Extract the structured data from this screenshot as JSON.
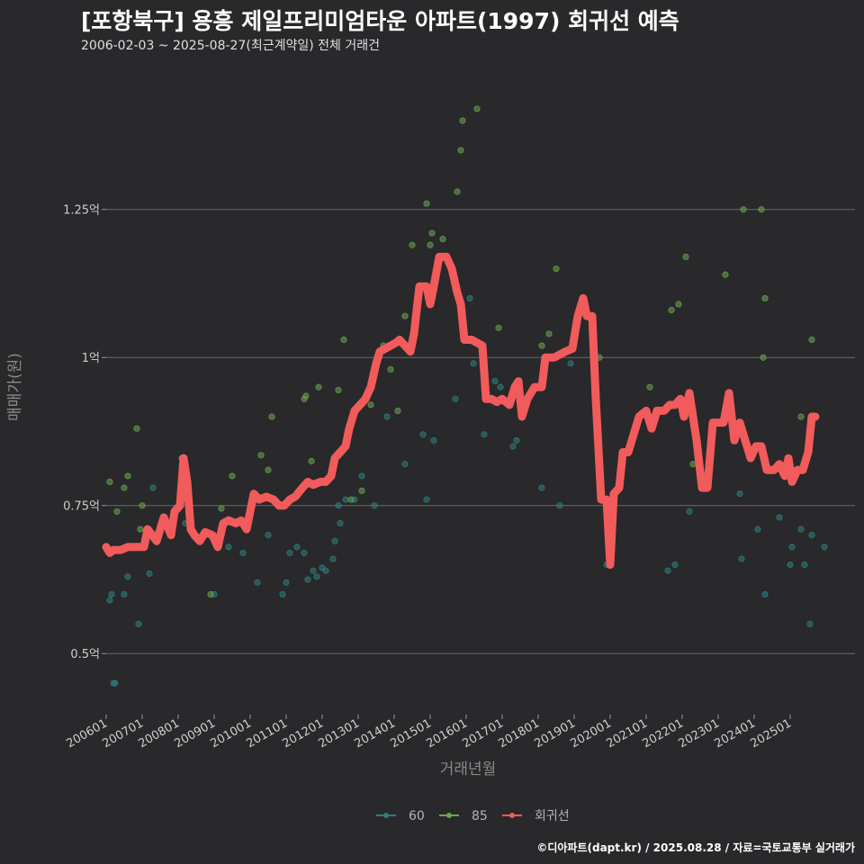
{
  "header": {
    "title": "[포항북구] 용흥 제일프리미엄타운 아파트(1997) 회귀선 예측",
    "subtitle": "2006-02-03 ~ 2025-08-27(최근계약일) 전체 거래건"
  },
  "footer": {
    "credit": "©디아파트(dapt.kr) / 2025.08.28 / 자료=국토교통부 실거래가"
  },
  "colors": {
    "background": "#29282b",
    "grid": "#6a6a6a",
    "series_60": "#2f7f80",
    "series_85": "#6aa650",
    "regression": "#f15b5b"
  },
  "chart_data": {
    "type": "scatter",
    "title": "[포항북구] 용흥 제일프리미엄타운 아파트(1997) 회귀선 예측",
    "subtitle": "2006-02-03 ~ 2025-08-27(최근계약일) 전체 거래건",
    "xlabel": "거래년월",
    "ylabel": "매매가(원)",
    "xlim": [
      2006.0,
      2025.8
    ],
    "ylim": [
      0.4,
      1.47
    ],
    "yticks": [
      {
        "value": 0.5,
        "label": "0.5억"
      },
      {
        "value": 0.75,
        "label": "0.75억"
      },
      {
        "value": 1.0,
        "label": "1억"
      },
      {
        "value": 1.25,
        "label": "1.25억"
      }
    ],
    "xticks": [
      {
        "value": 2006.0,
        "label": "200601"
      },
      {
        "value": 2007.0,
        "label": "200701"
      },
      {
        "value": 2008.0,
        "label": "200801"
      },
      {
        "value": 2009.0,
        "label": "200901"
      },
      {
        "value": 2010.0,
        "label": "201001"
      },
      {
        "value": 2011.0,
        "label": "201101"
      },
      {
        "value": 2012.0,
        "label": "201201"
      },
      {
        "value": 2013.0,
        "label": "201301"
      },
      {
        "value": 2014.0,
        "label": "201401"
      },
      {
        "value": 2015.0,
        "label": "201501"
      },
      {
        "value": 2016.0,
        "label": "201601"
      },
      {
        "value": 2017.0,
        "label": "201701"
      },
      {
        "value": 2018.0,
        "label": "201801"
      },
      {
        "value": 2019.0,
        "label": "201901"
      },
      {
        "value": 2020.0,
        "label": "202001"
      },
      {
        "value": 2021.0,
        "label": "202101"
      },
      {
        "value": 2022.0,
        "label": "202201"
      },
      {
        "value": 2023.0,
        "label": "202301"
      },
      {
        "value": 2024.0,
        "label": "202401"
      },
      {
        "value": 2025.0,
        "label": "202501"
      }
    ],
    "legend": [
      {
        "name": "60",
        "color": "#2f7f80"
      },
      {
        "name": "85",
        "color": "#6aa650"
      },
      {
        "name": "회귀선",
        "color": "#f15b5b"
      }
    ],
    "series": [
      {
        "name": "60",
        "points": [
          [
            2006.1,
            0.59
          ],
          [
            2006.15,
            0.6
          ],
          [
            2006.2,
            0.45
          ],
          [
            2006.25,
            0.45
          ],
          [
            2006.5,
            0.6
          ],
          [
            2006.6,
            0.63
          ],
          [
            2006.9,
            0.55
          ],
          [
            2007.2,
            0.635
          ],
          [
            2007.3,
            0.78
          ],
          [
            2008.1,
            0.77
          ],
          [
            2008.2,
            0.72
          ],
          [
            2009.0,
            0.6
          ],
          [
            2009.4,
            0.68
          ],
          [
            2009.8,
            0.67
          ],
          [
            2010.2,
            0.62
          ],
          [
            2010.5,
            0.7
          ],
          [
            2010.9,
            0.6
          ],
          [
            2011.0,
            0.62
          ],
          [
            2011.1,
            0.67
          ],
          [
            2011.3,
            0.68
          ],
          [
            2011.5,
            0.67
          ],
          [
            2011.6,
            0.625
          ],
          [
            2011.75,
            0.64
          ],
          [
            2011.85,
            0.63
          ],
          [
            2012.0,
            0.645
          ],
          [
            2012.1,
            0.64
          ],
          [
            2012.3,
            0.66
          ],
          [
            2012.35,
            0.69
          ],
          [
            2012.45,
            0.75
          ],
          [
            2012.5,
            0.72
          ],
          [
            2012.65,
            0.76
          ],
          [
            2012.9,
            0.76
          ],
          [
            2013.1,
            0.8
          ],
          [
            2013.45,
            0.75
          ],
          [
            2013.8,
            0.9
          ],
          [
            2014.3,
            0.82
          ],
          [
            2014.8,
            0.87
          ],
          [
            2014.9,
            0.76
          ],
          [
            2015.1,
            0.86
          ],
          [
            2015.7,
            0.93
          ],
          [
            2016.1,
            1.1
          ],
          [
            2016.2,
            0.99
          ],
          [
            2016.5,
            0.87
          ],
          [
            2016.8,
            0.96
          ],
          [
            2016.95,
            0.95
          ],
          [
            2017.3,
            0.85
          ],
          [
            2017.4,
            0.86
          ],
          [
            2018.1,
            0.78
          ],
          [
            2018.6,
            0.75
          ],
          [
            2018.9,
            0.99
          ],
          [
            2019.9,
            0.65
          ],
          [
            2021.6,
            0.64
          ],
          [
            2021.8,
            0.65
          ],
          [
            2022.2,
            0.74
          ],
          [
            2022.6,
            0.8
          ],
          [
            2023.6,
            0.77
          ],
          [
            2023.65,
            0.66
          ],
          [
            2024.1,
            0.71
          ],
          [
            2024.3,
            0.6
          ],
          [
            2024.7,
            0.73
          ],
          [
            2025.0,
            0.65
          ],
          [
            2025.05,
            0.68
          ],
          [
            2025.3,
            0.71
          ],
          [
            2025.4,
            0.65
          ],
          [
            2025.55,
            0.55
          ],
          [
            2025.6,
            0.7
          ],
          [
            2025.95,
            0.68
          ]
        ]
      },
      {
        "name": "85",
        "points": [
          [
            2006.1,
            0.79
          ],
          [
            2006.3,
            0.74
          ],
          [
            2006.5,
            0.78
          ],
          [
            2006.6,
            0.8
          ],
          [
            2006.85,
            0.88
          ],
          [
            2006.95,
            0.71
          ],
          [
            2007.0,
            0.75
          ],
          [
            2008.1,
            0.83
          ],
          [
            2008.9,
            0.6
          ],
          [
            2009.2,
            0.745
          ],
          [
            2009.5,
            0.8
          ],
          [
            2010.3,
            0.835
          ],
          [
            2010.5,
            0.81
          ],
          [
            2010.6,
            0.9
          ],
          [
            2011.5,
            0.93
          ],
          [
            2011.55,
            0.935
          ],
          [
            2011.7,
            0.825
          ],
          [
            2011.9,
            0.95
          ],
          [
            2012.45,
            0.945
          ],
          [
            2012.6,
            1.03
          ],
          [
            2012.8,
            0.76
          ],
          [
            2013.0,
            0.915
          ],
          [
            2013.1,
            0.775
          ],
          [
            2013.35,
            0.92
          ],
          [
            2013.7,
            1.02
          ],
          [
            2013.9,
            0.98
          ],
          [
            2014.1,
            0.91
          ],
          [
            2014.3,
            1.07
          ],
          [
            2014.5,
            1.19
          ],
          [
            2014.9,
            1.26
          ],
          [
            2015.0,
            1.19
          ],
          [
            2015.05,
            1.21
          ],
          [
            2015.35,
            1.2
          ],
          [
            2015.75,
            1.28
          ],
          [
            2015.85,
            1.35
          ],
          [
            2015.9,
            1.4
          ],
          [
            2016.3,
            1.42
          ],
          [
            2016.9,
            1.05
          ],
          [
            2018.1,
            1.02
          ],
          [
            2018.3,
            1.04
          ],
          [
            2018.5,
            1.15
          ],
          [
            2019.5,
            1.05
          ],
          [
            2019.7,
            1.0
          ],
          [
            2021.1,
            0.95
          ],
          [
            2021.7,
            1.08
          ],
          [
            2021.9,
            1.09
          ],
          [
            2022.1,
            1.17
          ],
          [
            2022.3,
            0.82
          ],
          [
            2023.2,
            1.14
          ],
          [
            2023.7,
            1.25
          ],
          [
            2024.2,
            1.25
          ],
          [
            2024.25,
            1.0
          ],
          [
            2024.3,
            1.1
          ],
          [
            2025.3,
            0.9
          ],
          [
            2025.6,
            1.03
          ]
        ]
      },
      {
        "name": "회귀선",
        "style": "line",
        "points": [
          [
            2006.0,
            0.68
          ],
          [
            2006.1,
            0.67
          ],
          [
            2006.2,
            0.675
          ],
          [
            2006.4,
            0.675
          ],
          [
            2006.6,
            0.68
          ],
          [
            2006.9,
            0.68
          ],
          [
            2007.05,
            0.68
          ],
          [
            2007.15,
            0.71
          ],
          [
            2007.4,
            0.69
          ],
          [
            2007.6,
            0.73
          ],
          [
            2007.8,
            0.7
          ],
          [
            2007.9,
            0.74
          ],
          [
            2008.05,
            0.75
          ],
          [
            2008.15,
            0.83
          ],
          [
            2008.25,
            0.79
          ],
          [
            2008.35,
            0.71
          ],
          [
            2008.45,
            0.7
          ],
          [
            2008.6,
            0.69
          ],
          [
            2008.75,
            0.705
          ],
          [
            2008.95,
            0.7
          ],
          [
            2009.1,
            0.68
          ],
          [
            2009.25,
            0.72
          ],
          [
            2009.4,
            0.725
          ],
          [
            2009.6,
            0.72
          ],
          [
            2009.75,
            0.725
          ],
          [
            2009.9,
            0.71
          ],
          [
            2010.1,
            0.77
          ],
          [
            2010.25,
            0.76
          ],
          [
            2010.45,
            0.765
          ],
          [
            2010.65,
            0.76
          ],
          [
            2010.8,
            0.75
          ],
          [
            2010.95,
            0.75
          ],
          [
            2011.1,
            0.76
          ],
          [
            2011.25,
            0.765
          ],
          [
            2011.45,
            0.78
          ],
          [
            2011.6,
            0.79
          ],
          [
            2011.75,
            0.785
          ],
          [
            2011.95,
            0.79
          ],
          [
            2012.1,
            0.79
          ],
          [
            2012.25,
            0.8
          ],
          [
            2012.35,
            0.83
          ],
          [
            2012.5,
            0.84
          ],
          [
            2012.65,
            0.85
          ],
          [
            2012.75,
            0.88
          ],
          [
            2012.9,
            0.91
          ],
          [
            2013.05,
            0.92
          ],
          [
            2013.2,
            0.93
          ],
          [
            2013.35,
            0.95
          ],
          [
            2013.5,
            0.99
          ],
          [
            2013.6,
            1.01
          ],
          [
            2013.75,
            1.015
          ],
          [
            2013.9,
            1.02
          ],
          [
            2014.05,
            1.025
          ],
          [
            2014.15,
            1.03
          ],
          [
            2014.3,
            1.02
          ],
          [
            2014.45,
            1.01
          ],
          [
            2014.55,
            1.04
          ],
          [
            2014.7,
            1.12
          ],
          [
            2014.9,
            1.12
          ],
          [
            2015.0,
            1.09
          ],
          [
            2015.1,
            1.12
          ],
          [
            2015.25,
            1.17
          ],
          [
            2015.45,
            1.17
          ],
          [
            2015.6,
            1.15
          ],
          [
            2015.75,
            1.11
          ],
          [
            2015.85,
            1.09
          ],
          [
            2015.95,
            1.03
          ],
          [
            2016.15,
            1.03
          ],
          [
            2016.3,
            1.025
          ],
          [
            2016.45,
            1.02
          ],
          [
            2016.55,
            0.93
          ],
          [
            2016.7,
            0.93
          ],
          [
            2016.85,
            0.925
          ],
          [
            2017.0,
            0.93
          ],
          [
            2017.2,
            0.92
          ],
          [
            2017.35,
            0.95
          ],
          [
            2017.45,
            0.96
          ],
          [
            2017.55,
            0.9
          ],
          [
            2017.7,
            0.93
          ],
          [
            2017.9,
            0.95
          ],
          [
            2018.1,
            0.95
          ],
          [
            2018.2,
            1.0
          ],
          [
            2018.45,
            1.0
          ],
          [
            2018.6,
            1.005
          ],
          [
            2018.75,
            1.01
          ],
          [
            2018.95,
            1.015
          ],
          [
            2019.1,
            1.07
          ],
          [
            2019.25,
            1.1
          ],
          [
            2019.35,
            1.07
          ],
          [
            2019.5,
            1.07
          ],
          [
            2019.6,
            0.93
          ],
          [
            2019.75,
            0.76
          ],
          [
            2019.9,
            0.76
          ],
          [
            2020.0,
            0.65
          ],
          [
            2020.1,
            0.77
          ],
          [
            2020.25,
            0.78
          ],
          [
            2020.35,
            0.84
          ],
          [
            2020.5,
            0.84
          ],
          [
            2020.65,
            0.87
          ],
          [
            2020.8,
            0.9
          ],
          [
            2021.0,
            0.91
          ],
          [
            2021.15,
            0.88
          ],
          [
            2021.3,
            0.91
          ],
          [
            2021.5,
            0.91
          ],
          [
            2021.65,
            0.92
          ],
          [
            2021.8,
            0.92
          ],
          [
            2021.95,
            0.93
          ],
          [
            2022.05,
            0.9
          ],
          [
            2022.2,
            0.94
          ],
          [
            2022.4,
            0.86
          ],
          [
            2022.55,
            0.78
          ],
          [
            2022.7,
            0.78
          ],
          [
            2022.85,
            0.89
          ],
          [
            2023.0,
            0.89
          ],
          [
            2023.15,
            0.89
          ],
          [
            2023.3,
            0.94
          ],
          [
            2023.45,
            0.86
          ],
          [
            2023.6,
            0.89
          ],
          [
            2023.75,
            0.86
          ],
          [
            2023.9,
            0.83
          ],
          [
            2024.05,
            0.85
          ],
          [
            2024.2,
            0.85
          ],
          [
            2024.35,
            0.81
          ],
          [
            2024.55,
            0.81
          ],
          [
            2024.7,
            0.82
          ],
          [
            2024.85,
            0.8
          ],
          [
            2024.95,
            0.83
          ],
          [
            2025.05,
            0.79
          ],
          [
            2025.2,
            0.81
          ],
          [
            2025.35,
            0.81
          ],
          [
            2025.5,
            0.84
          ],
          [
            2025.6,
            0.9
          ],
          [
            2025.7,
            0.9
          ]
        ]
      }
    ]
  }
}
